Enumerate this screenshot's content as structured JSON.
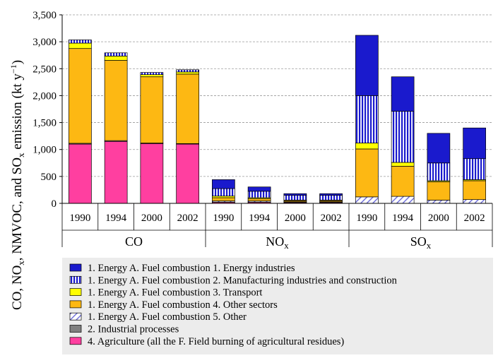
{
  "chart_data": {
    "type": "bar",
    "stacked": true,
    "ylabel": {
      "pre": "CO, NO",
      "sub1": "x",
      "mid1": ", NMVOC, and SO",
      "sub2": "x",
      "mid2": " emission (kt y",
      "sup": "−1",
      "post": ")"
    },
    "ylim": [
      0,
      3500
    ],
    "yticks": [
      "0",
      "500",
      "1,000",
      "1,500",
      "2,000",
      "2,500",
      "3,000",
      "3,500"
    ],
    "ytick_values": [
      0,
      500,
      1000,
      1500,
      2000,
      2500,
      3000,
      3500
    ],
    "grid": "horizontal dashed",
    "categories": [
      "1990",
      "1994",
      "2000",
      "2002"
    ],
    "groups": [
      {
        "name": "CO",
        "sub": ""
      },
      {
        "name": "NO",
        "sub": "x"
      },
      {
        "name": "SO",
        "sub": "x"
      }
    ],
    "series": [
      {
        "name": "4. Agriculture (all the F. Field burning of agricultural residues)",
        "color": "#ff3fa0",
        "pattern": "solid",
        "values": [
          [
            1100,
            1150,
            1110,
            1100
          ],
          [
            20,
            20,
            15,
            15
          ],
          [
            0,
            0,
            0,
            0
          ]
        ]
      },
      {
        "name": "2. Industrial processes",
        "color": "#808080",
        "pattern": "solid",
        "values": [
          [
            15,
            15,
            10,
            10
          ],
          [
            5,
            5,
            5,
            5
          ],
          [
            0,
            0,
            0,
            0
          ]
        ]
      },
      {
        "name": "1. Energy A. Fuel combustion 5. Other",
        "color": "#ffffff",
        "pattern": "diag",
        "values": [
          [
            0,
            0,
            0,
            0
          ],
          [
            20,
            20,
            10,
            10
          ],
          [
            120,
            130,
            60,
            70
          ]
        ]
      },
      {
        "name": "1. Energy A. Fuel combustion 4. Other sectors",
        "color": "#fdb813",
        "pattern": "solid",
        "values": [
          [
            1760,
            1490,
            1230,
            1290
          ],
          [
            60,
            40,
            20,
            20
          ],
          [
            890,
            560,
            340,
            350
          ]
        ]
      },
      {
        "name": "1. Energy A. Fuel combustion 3. Transport",
        "color": "#ffff00",
        "pattern": "solid",
        "values": [
          [
            100,
            80,
            40,
            40
          ],
          [
            30,
            20,
            10,
            10
          ],
          [
            110,
            70,
            20,
            20
          ]
        ]
      },
      {
        "name": "1. Energy A. Fuel combustion 2. Manufacturing industries and construction",
        "color": "#1a1acd",
        "pattern": "vstripe",
        "values": [
          [
            60,
            60,
            40,
            40
          ],
          [
            140,
            120,
            90,
            90
          ],
          [
            880,
            950,
            330,
            390
          ]
        ]
      },
      {
        "name": "1. Energy A. Fuel combustion 1. Energy industries",
        "color": "#1a1acd",
        "pattern": "solid",
        "values": [
          [
            0,
            0,
            0,
            0
          ],
          [
            165,
            80,
            30,
            30
          ],
          [
            1120,
            640,
            550,
            570
          ]
        ]
      }
    ],
    "legend_position": "bottom",
    "legend": [
      {
        "label": "1. Energy A. Fuel combustion 1. Energy industries",
        "color": "#1a1acd",
        "pattern": "solid"
      },
      {
        "label": "1. Energy A. Fuel combustion 2. Manufacturing industries and construction",
        "color": "#1a1acd",
        "pattern": "vstripe"
      },
      {
        "label": "1. Energy A. Fuel combustion 3. Transport",
        "color": "#ffff00",
        "pattern": "solid"
      },
      {
        "label": "1. Energy A. Fuel combustion 4. Other sectors",
        "color": "#fdb813",
        "pattern": "solid"
      },
      {
        "label": "1. Energy A. Fuel combustion 5. Other",
        "color": "#ffffff",
        "pattern": "diag"
      },
      {
        "label": "2. Industrial processes",
        "color": "#808080",
        "pattern": "solid"
      },
      {
        "label": "4. Agriculture (all the F. Field burning of agricultural residues)",
        "color": "#ff3fa0",
        "pattern": "solid"
      }
    ]
  }
}
